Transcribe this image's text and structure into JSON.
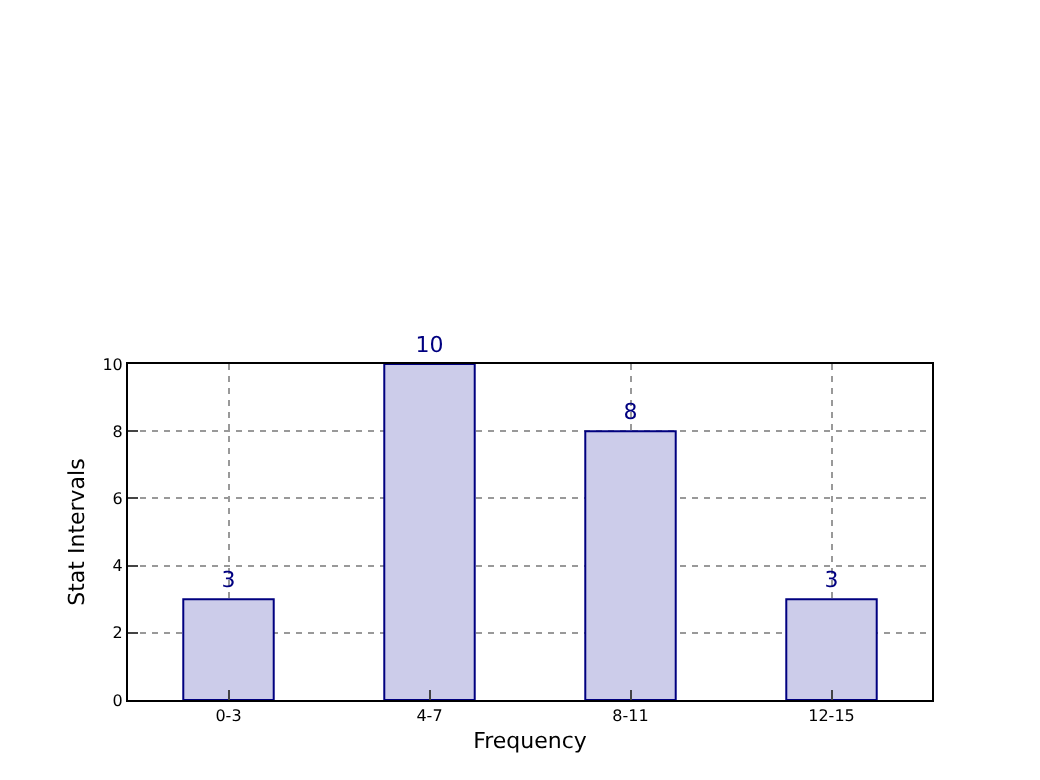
{
  "chart_data": {
    "type": "bar",
    "xlabel": "Frequency",
    "ylabel": "Stat Intervals",
    "categories": [
      "0-3",
      "4-7",
      "8-11",
      "12-15"
    ],
    "values": [
      3,
      10,
      8,
      3
    ],
    "color": "#ccccea",
    "ylim": [
      0,
      10
    ],
    "yticks": [
      0,
      2,
      4,
      6,
      8,
      10
    ],
    "grid": true,
    "data_labels": true
  }
}
